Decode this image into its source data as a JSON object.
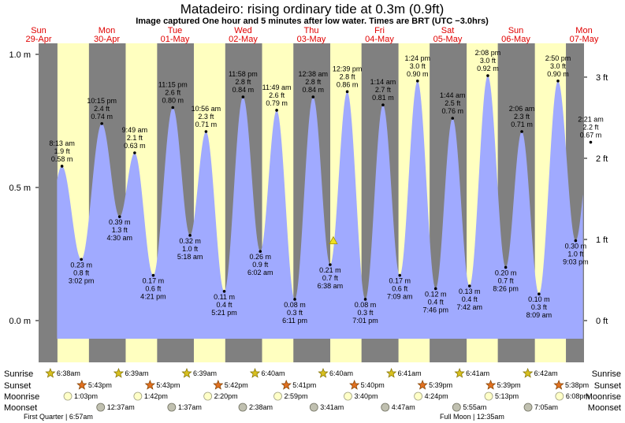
{
  "header": {
    "title": "Matadeiro: rising  ordinary tide at 0.3m (0.9ft)",
    "subtitle": "Image captured One hour and 5 minutes after low water. Times are BRT (UTC −3.0hrs)"
  },
  "colors": {
    "night": "#808080",
    "day": "#ffffc0",
    "water": "#a0aaff",
    "day_label": "#e00000",
    "marker": "#f0e020"
  },
  "chart_data": {
    "type": "area",
    "title": "Matadeiro: rising  ordinary tide at 0.3m (0.9ft)",
    "y_unit_left": "m",
    "y_unit_right": "ft",
    "ylim_m": [
      -0.22,
      1.04
    ],
    "left_ticks": [
      "1.0 m",
      "0.5 m",
      "0.0 m"
    ],
    "left_tick_values": [
      1.0,
      0.5,
      0.0
    ],
    "right_ticks": [
      "3 ft",
      "2 ft",
      "1 ft",
      "0 ft"
    ],
    "right_tick_values_ft": [
      3,
      2,
      1,
      0
    ],
    "x_start_day": 29,
    "x_end_day": 37,
    "day_labels": [
      {
        "name": "Sun",
        "date": "29-Apr",
        "day": 29
      },
      {
        "name": "Mon",
        "date": "30-Apr",
        "day": 30
      },
      {
        "name": "Tue",
        "date": "01-May",
        "day": 31
      },
      {
        "name": "Wed",
        "date": "02-May",
        "day": 32
      },
      {
        "name": "Thu",
        "date": "03-May",
        "day": 33
      },
      {
        "name": "Fri",
        "date": "04-May",
        "day": 34
      },
      {
        "name": "Sat",
        "date": "05-May",
        "day": 35
      },
      {
        "name": "Sun",
        "date": "06-May",
        "day": 36
      },
      {
        "name": "Mon",
        "date": "07-May",
        "day": 37
      }
    ],
    "sunrise_hours": [
      6.633,
      6.65,
      6.65,
      6.667,
      6.667,
      6.683,
      6.683,
      6.7
    ],
    "sunset_hours": [
      17.717,
      17.717,
      17.7,
      17.683,
      17.667,
      17.65,
      17.65,
      17.633
    ],
    "data_start": {
      "day": 29,
      "hour": 6.5
    },
    "data_end": {
      "day": 36,
      "hour": 23.6
    },
    "current": {
      "day": 33,
      "hour": 7.75,
      "m": 0.3
    },
    "tides": [
      {
        "day": 29,
        "hour": 8.217,
        "time": "8:13 am",
        "m": 0.58,
        "ft": "1.9 ft",
        "m_label": "0.58 m",
        "type": "high"
      },
      {
        "day": 29,
        "hour": 15.033,
        "time": "3:02 pm",
        "m": 0.23,
        "ft": "0.8 ft",
        "m_label": "0.23 m",
        "type": "low"
      },
      {
        "day": 29,
        "hour": 22.25,
        "time": "10:15 pm",
        "m": 0.74,
        "ft": "2.4 ft",
        "m_label": "0.74 m",
        "type": "high"
      },
      {
        "day": 30,
        "hour": 4.5,
        "time": "4:30 am",
        "m": 0.39,
        "ft": "1.3 ft",
        "m_label": "0.39 m",
        "type": "low"
      },
      {
        "day": 30,
        "hour": 9.817,
        "time": "9:49 am",
        "m": 0.63,
        "ft": "2.1 ft",
        "m_label": "0.63 m",
        "type": "high"
      },
      {
        "day": 30,
        "hour": 16.35,
        "time": "4:21 pm",
        "m": 0.17,
        "ft": "0.6 ft",
        "m_label": "0.17 m",
        "type": "low"
      },
      {
        "day": 30,
        "hour": 23.25,
        "time": "11:15 pm",
        "m": 0.8,
        "ft": "2.6 ft",
        "m_label": "0.80 m",
        "type": "high"
      },
      {
        "day": 31,
        "hour": 5.3,
        "time": "5:18 am",
        "m": 0.32,
        "ft": "1.0 ft",
        "m_label": "0.32 m",
        "type": "low"
      },
      {
        "day": 31,
        "hour": 10.933,
        "time": "10:56 am",
        "m": 0.71,
        "ft": "2.3 ft",
        "m_label": "0.71 m",
        "type": "high"
      },
      {
        "day": 31,
        "hour": 17.35,
        "time": "5:21 pm",
        "m": 0.11,
        "ft": "0.4 ft",
        "m_label": "0.11 m",
        "type": "low"
      },
      {
        "day": 31,
        "hour": 23.967,
        "time": "11:58 pm",
        "m": 0.84,
        "ft": "2.8 ft",
        "m_label": "0.84 m",
        "type": "high"
      },
      {
        "day": 32,
        "hour": 6.033,
        "time": "6:02 am",
        "m": 0.26,
        "ft": "0.9 ft",
        "m_label": "0.26 m",
        "type": "low"
      },
      {
        "day": 32,
        "hour": 11.817,
        "time": "11:49 am",
        "m": 0.79,
        "ft": "2.6 ft",
        "m_label": "0.79 m",
        "type": "high"
      },
      {
        "day": 32,
        "hour": 18.183,
        "time": "6:11 pm",
        "m": 0.08,
        "ft": "0.3 ft",
        "m_label": "0.08 m",
        "type": "low"
      },
      {
        "day": 33,
        "hour": 0.633,
        "time": "12:38 am",
        "m": 0.84,
        "ft": "2.8 ft",
        "m_label": "0.84 m",
        "type": "high"
      },
      {
        "day": 33,
        "hour": 6.633,
        "time": "6:38 am",
        "m": 0.21,
        "ft": "0.7 ft",
        "m_label": "0.21 m",
        "type": "low"
      },
      {
        "day": 33,
        "hour": 12.65,
        "time": "12:39 pm",
        "m": 0.86,
        "ft": "2.8 ft",
        "m_label": "0.86 m",
        "type": "high"
      },
      {
        "day": 33,
        "hour": 19.017,
        "time": "7:01 pm",
        "m": 0.08,
        "ft": "0.3 ft",
        "m_label": "0.08 m",
        "type": "low"
      },
      {
        "day": 34,
        "hour": 1.233,
        "time": "1:14 am",
        "m": 0.81,
        "ft": "2.7 ft",
        "m_label": "0.81 m",
        "type": "high"
      },
      {
        "day": 34,
        "hour": 7.15,
        "time": "7:09 am",
        "m": 0.17,
        "ft": "0.6 ft",
        "m_label": "0.17 m",
        "type": "low"
      },
      {
        "day": 34,
        "hour": 13.4,
        "time": "1:24 pm",
        "m": 0.9,
        "ft": "3.0 ft",
        "m_label": "0.90 m",
        "type": "high"
      },
      {
        "day": 34,
        "hour": 19.767,
        "time": "7:46 pm",
        "m": 0.12,
        "ft": "0.4 ft",
        "m_label": "0.12 m",
        "type": "low"
      },
      {
        "day": 35,
        "hour": 1.733,
        "time": "1:44 am",
        "m": 0.76,
        "ft": "2.5 ft",
        "m_label": "0.76 m",
        "type": "high"
      },
      {
        "day": 35,
        "hour": 7.7,
        "time": "7:42 am",
        "m": 0.13,
        "ft": "0.4 ft",
        "m_label": "0.13 m",
        "type": "low"
      },
      {
        "day": 35,
        "hour": 14.133,
        "time": "2:08 pm",
        "m": 0.92,
        "ft": "3.0 ft",
        "m_label": "0.92 m",
        "type": "high"
      },
      {
        "day": 35,
        "hour": 20.433,
        "time": "8:26 pm",
        "m": 0.2,
        "ft": "0.7 ft",
        "m_label": "0.20 m",
        "type": "low"
      },
      {
        "day": 36,
        "hour": 2.1,
        "time": "2:06 am",
        "m": 0.71,
        "ft": "2.3 ft",
        "m_label": "0.71 m",
        "type": "high"
      },
      {
        "day": 36,
        "hour": 8.15,
        "time": "8:09 am",
        "m": 0.1,
        "ft": "0.3 ft",
        "m_label": "0.10 m",
        "type": "low"
      },
      {
        "day": 36,
        "hour": 14.833,
        "time": "2:50 pm",
        "m": 0.9,
        "ft": "3.0 ft",
        "m_label": "0.90 m",
        "type": "high"
      },
      {
        "day": 36,
        "hour": 21.05,
        "time": "9:03 pm",
        "m": 0.3,
        "ft": "1.0 ft",
        "m_label": "0.30 m",
        "type": "low"
      },
      {
        "day": 37,
        "hour": 2.35,
        "time": "2:21 am",
        "m": 0.67,
        "ft": "2.2 ft",
        "m_label": "0.67 m",
        "type": "high"
      }
    ]
  },
  "events": {
    "row_labels": [
      "Sunrise",
      "Sunset",
      "Moonrise",
      "Moonset"
    ],
    "sunrise": [
      {
        "day": 29,
        "hour": 6.633,
        "label": "6:38am"
      },
      {
        "day": 30,
        "hour": 6.65,
        "label": "6:39am"
      },
      {
        "day": 31,
        "hour": 6.65,
        "label": "6:39am"
      },
      {
        "day": 32,
        "hour": 6.667,
        "label": "6:40am"
      },
      {
        "day": 33,
        "hour": 6.667,
        "label": "6:40am"
      },
      {
        "day": 34,
        "hour": 6.683,
        "label": "6:41am"
      },
      {
        "day": 35,
        "hour": 6.683,
        "label": "6:41am"
      },
      {
        "day": 36,
        "hour": 6.7,
        "label": "6:42am"
      }
    ],
    "sunset": [
      {
        "day": 29,
        "hour": 17.717,
        "label": "5:43pm"
      },
      {
        "day": 30,
        "hour": 17.717,
        "label": "5:43pm"
      },
      {
        "day": 31,
        "hour": 17.7,
        "label": "5:42pm"
      },
      {
        "day": 32,
        "hour": 17.683,
        "label": "5:41pm"
      },
      {
        "day": 33,
        "hour": 17.667,
        "label": "5:40pm"
      },
      {
        "day": 34,
        "hour": 17.65,
        "label": "5:39pm"
      },
      {
        "day": 35,
        "hour": 17.65,
        "label": "5:39pm"
      },
      {
        "day": 36,
        "hour": 17.633,
        "label": "5:38pm"
      }
    ],
    "moonrise": [
      {
        "day": 29,
        "hour": 13.05,
        "label": "1:03pm"
      },
      {
        "day": 30,
        "hour": 13.7,
        "label": "1:42pm"
      },
      {
        "day": 31,
        "hour": 14.333,
        "label": "2:20pm"
      },
      {
        "day": 32,
        "hour": 14.983,
        "label": "2:59pm"
      },
      {
        "day": 33,
        "hour": 15.667,
        "label": "3:40pm"
      },
      {
        "day": 34,
        "hour": 16.4,
        "label": "4:24pm"
      },
      {
        "day": 35,
        "hour": 17.217,
        "label": "5:13pm"
      },
      {
        "day": 36,
        "hour": 18.133,
        "label": "6:08pm"
      }
    ],
    "moonset": [
      {
        "day": 30,
        "hour": 0.617,
        "label": "12:37am"
      },
      {
        "day": 31,
        "hour": 1.617,
        "label": "1:37am"
      },
      {
        "day": 32,
        "hour": 2.633,
        "label": "2:38am"
      },
      {
        "day": 33,
        "hour": 3.683,
        "label": "3:41am"
      },
      {
        "day": 34,
        "hour": 4.783,
        "label": "4:47am"
      },
      {
        "day": 35,
        "hour": 5.917,
        "label": "5:55am"
      },
      {
        "day": 36,
        "hour": 7.083,
        "label": "7:05am"
      }
    ]
  },
  "footer": {
    "first_quarter": "First Quarter | 6:57am",
    "full_moon": "Full Moon | 12:35am"
  }
}
